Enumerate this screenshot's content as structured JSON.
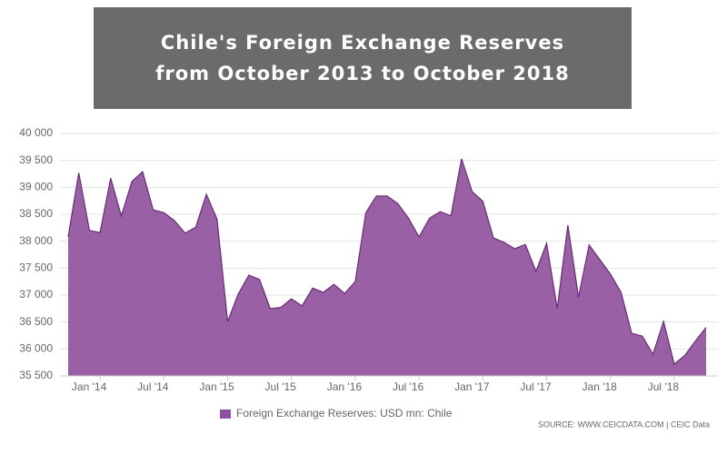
{
  "chart_data": {
    "type": "area",
    "title": "Chile's Foreign Exchange Reserves from October 2013 to October 2018",
    "categories": [
      null,
      null,
      null,
      "Jan '14",
      null,
      null,
      null,
      null,
      null,
      "Jul '14",
      null,
      null,
      null,
      null,
      null,
      "Jan '15",
      null,
      null,
      null,
      null,
      null,
      "Jul '15",
      null,
      null,
      null,
      null,
      null,
      "Jan '16",
      null,
      null,
      null,
      null,
      null,
      "Jul '16",
      null,
      null,
      null,
      null,
      null,
      "Jan '17",
      null,
      null,
      null,
      null,
      null,
      "Jul '17",
      null,
      null,
      null,
      null,
      null,
      "Jan '18",
      null,
      null,
      null,
      null,
      null,
      "Jul '18",
      null,
      null,
      null
    ],
    "series": [
      {
        "name": "Foreign Exchange Reserves: USD mn: Chile",
        "color": "#8e4f9c",
        "values": [
          38080,
          39270,
          38200,
          38160,
          39170,
          38470,
          39110,
          39290,
          38580,
          38530,
          38380,
          38150,
          38260,
          38870,
          38410,
          36510,
          37020,
          37370,
          37290,
          36750,
          36770,
          36930,
          36800,
          37130,
          37050,
          37200,
          37030,
          37250,
          38530,
          38840,
          38840,
          38700,
          38430,
          38080,
          38430,
          38550,
          38470,
          39530,
          38920,
          38740,
          38060,
          37980,
          37860,
          37940,
          37440,
          37960,
          36750,
          38300,
          36960,
          37930,
          37660,
          37390,
          37050,
          36290,
          36240,
          35900,
          36510,
          35720,
          35880,
          36150,
          36400
        ]
      }
    ],
    "ylim": [
      35500,
      40000
    ],
    "yticks": [
      {
        "value": 35500,
        "label": "35 500"
      },
      {
        "value": 36000,
        "label": "36 000"
      },
      {
        "value": 36500,
        "label": "36 500"
      },
      {
        "value": 37000,
        "label": "37 000"
      },
      {
        "value": 37500,
        "label": "37 500"
      },
      {
        "value": 38000,
        "label": "38 000"
      },
      {
        "value": 38500,
        "label": "38 500"
      },
      {
        "value": 39000,
        "label": "39 000"
      },
      {
        "value": 39500,
        "label": "39 500"
      },
      {
        "value": 40000,
        "label": "40 000"
      }
    ],
    "grid": true,
    "source": "SOURCE: WWW.CEICDATA.COM | CEIC Data"
  }
}
